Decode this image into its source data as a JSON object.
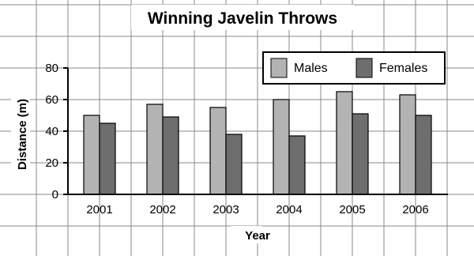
{
  "chart_data": {
    "type": "bar",
    "title": "Winning Javelin Throws",
    "xlabel": "Year",
    "ylabel": "Distance (m)",
    "categories": [
      "2001",
      "2002",
      "2003",
      "2004",
      "2005",
      "2006"
    ],
    "series": [
      {
        "name": "Males",
        "values": [
          50,
          57,
          55,
          60,
          65,
          63
        ],
        "color": "#b3b3b3"
      },
      {
        "name": "Females",
        "values": [
          45,
          49,
          38,
          37,
          51,
          50
        ],
        "color": "#6e6e6e"
      }
    ],
    "y_ticks": [
      "0",
      "20",
      "40",
      "60",
      "80"
    ],
    "ylim": [
      0,
      80
    ],
    "grid": true,
    "legend_position": "top-right"
  }
}
